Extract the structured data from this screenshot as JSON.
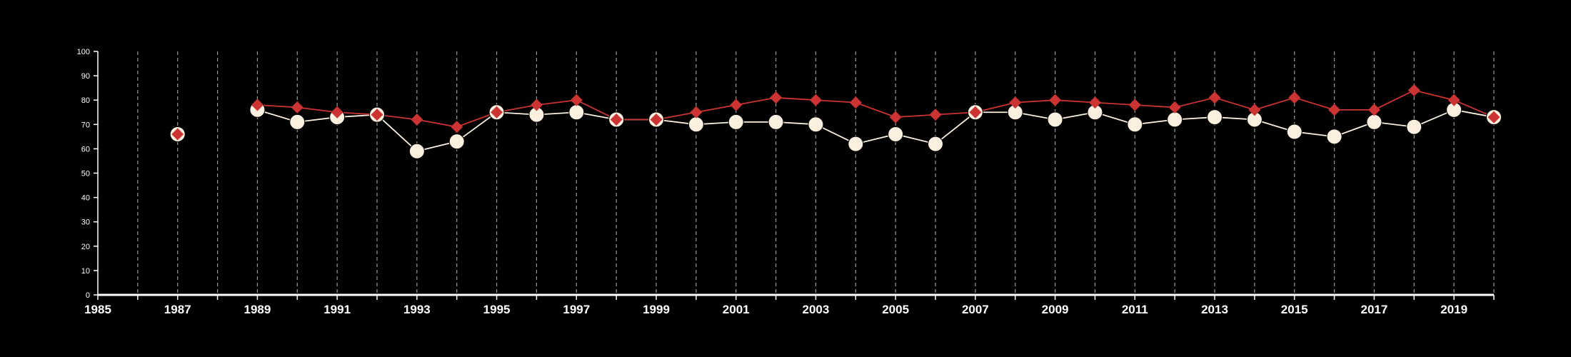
{
  "colors": {
    "background": "#000000",
    "axis": "#ffffff",
    "grid": "#9a9a9a",
    "series_a": "#fbf0e0",
    "series_b": "#cc3333"
  },
  "chart_data": {
    "type": "line",
    "title": "",
    "xlabel": "",
    "ylabel": "",
    "xlim": [
      1985,
      2020
    ],
    "ylim": [
      0,
      100
    ],
    "y_ticks": [
      0,
      10,
      20,
      30,
      40,
      50,
      60,
      70,
      80,
      90,
      100
    ],
    "x_tick_labels": [
      "1985",
      "1987",
      "1989",
      "1991",
      "1993",
      "1995",
      "1997",
      "1999",
      "2001",
      "2003",
      "2005",
      "2007",
      "2009",
      "2011",
      "2013",
      "2015",
      "2017",
      "2019"
    ],
    "grid": "vertical dashed gridlines every year",
    "legend": "none",
    "series": [
      {
        "marker": "circle",
        "x": [
          1987,
          1989,
          1990,
          1991,
          1992,
          1993,
          1994,
          1995,
          1996,
          1997,
          1998,
          1999,
          2000,
          2001,
          2002,
          2003,
          2004,
          2005,
          2006,
          2007,
          2008,
          2009,
          2010,
          2011,
          2012,
          2013,
          2014,
          2015,
          2016,
          2017,
          2018,
          2019,
          2020
        ],
        "values": [
          66,
          76,
          71,
          73,
          74,
          59,
          63,
          75,
          74,
          75,
          72,
          72,
          70,
          71,
          71,
          70,
          62,
          66,
          62,
          75,
          75,
          72,
          75,
          70,
          72,
          73,
          72,
          67,
          65,
          71,
          69,
          76,
          73
        ]
      },
      {
        "marker": "diamond",
        "x": [
          1987,
          1989,
          1990,
          1991,
          1992,
          1993,
          1994,
          1995,
          1996,
          1997,
          1998,
          1999,
          2000,
          2001,
          2002,
          2003,
          2004,
          2005,
          2006,
          2007,
          2008,
          2009,
          2010,
          2011,
          2012,
          2013,
          2014,
          2015,
          2016,
          2017,
          2018,
          2019,
          2020
        ],
        "values": [
          66,
          78,
          77,
          75,
          74,
          72,
          69,
          75,
          78,
          80,
          72,
          72,
          75,
          78,
          81,
          80,
          79,
          73,
          74,
          75,
          79,
          80,
          79,
          78,
          77,
          81,
          76,
          81,
          76,
          76,
          84,
          80,
          73
        ]
      }
    ]
  }
}
